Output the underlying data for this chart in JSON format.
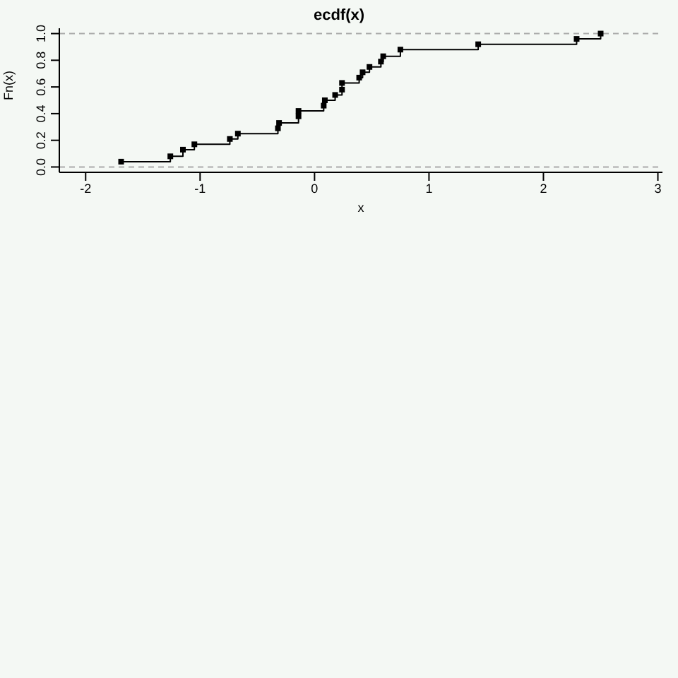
{
  "chart_data": {
    "type": "step",
    "title": "ecdf(x)",
    "xlabel": "x",
    "ylabel": "Fn(x)",
    "x": [
      -1.69,
      -1.26,
      -1.15,
      -1.05,
      -0.74,
      -0.67,
      -0.32,
      -0.31,
      -0.14,
      -0.14,
      0.08,
      0.09,
      0.18,
      0.24,
      0.24,
      0.39,
      0.42,
      0.48,
      0.58,
      0.6,
      0.75,
      1.43,
      2.29,
      2.5
    ],
    "series": [
      {
        "color": "#000000",
        "values": [
          0.04,
          0.08,
          0.13,
          0.17,
          0.21,
          0.25,
          0.29,
          0.33,
          0.38,
          0.42,
          0.46,
          0.5,
          0.54,
          0.58,
          0.63,
          0.67,
          0.71,
          0.75,
          0.79,
          0.83,
          0.88,
          0.92,
          0.96,
          1.0
        ]
      }
    ],
    "xlim": [
      -2.23,
      3.04
    ],
    "ylim": [
      -0.04,
      1.04
    ],
    "xticks": [
      -2,
      -1,
      0,
      1,
      2,
      3
    ],
    "yticks": [
      {
        "value": 0,
        "label": "0.0"
      },
      {
        "value": 0.2,
        "label": "0.2"
      },
      {
        "value": 0.4,
        "label": "0.4"
      },
      {
        "value": 0.6,
        "label": "0.6"
      },
      {
        "value": 0.8,
        "label": "0.8"
      },
      {
        "value": 1,
        "label": "1.0"
      }
    ],
    "ref_lines": [
      {
        "axis": "y",
        "value": 0,
        "color": "#aaaaaa",
        "line_style": "dashed"
      },
      {
        "axis": "y",
        "value": 1,
        "color": "#aaaaaa",
        "line_style": "dashed"
      }
    ],
    "marker": "square",
    "grid": false,
    "legend": false
  }
}
